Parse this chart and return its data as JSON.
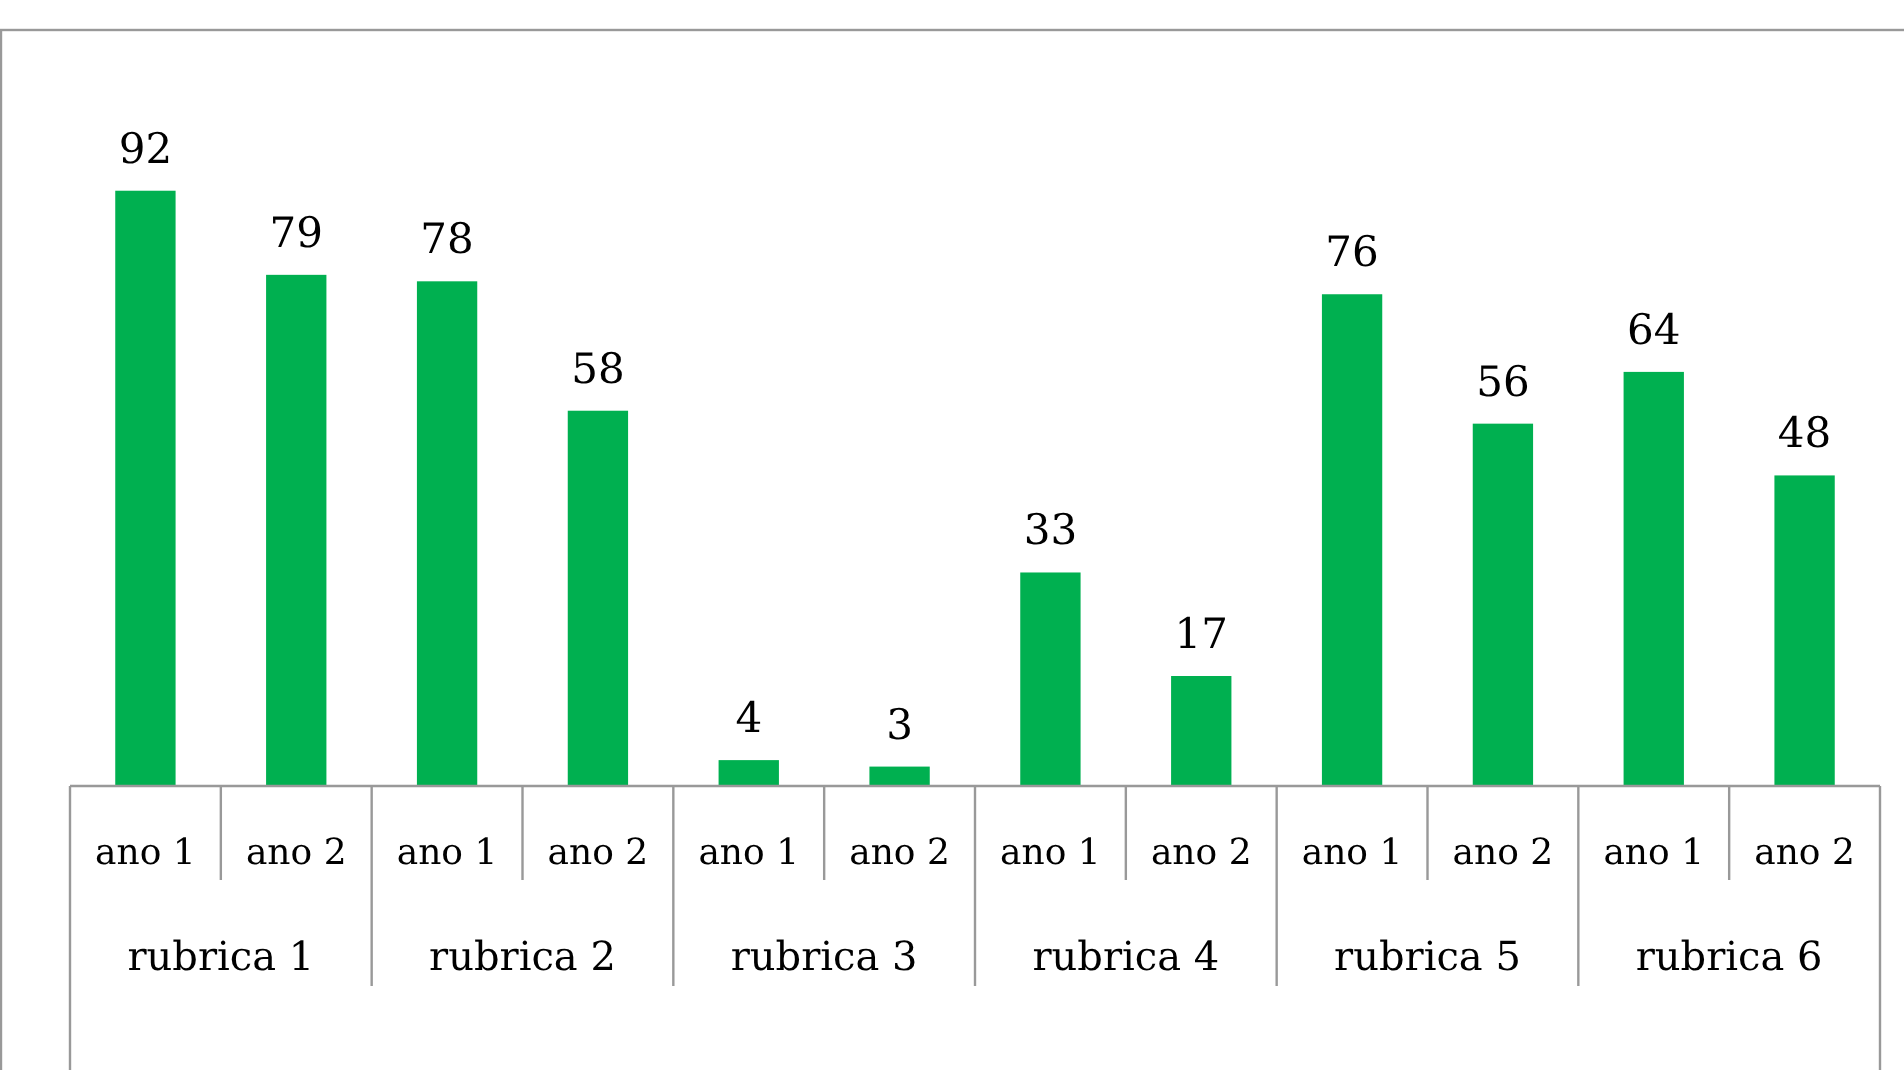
{
  "chart_data": {
    "type": "bar",
    "categories": [
      "ano 1",
      "ano 2",
      "ano 1",
      "ano 2",
      "ano 1",
      "ano 2",
      "ano 1",
      "ano 2",
      "ano 1",
      "ano 2",
      "ano 1",
      "ano 2"
    ],
    "values": [
      92,
      79,
      78,
      58,
      4,
      3,
      33,
      17,
      76,
      56,
      64,
      48
    ],
    "color": "#00b050",
    "data_labels": true,
    "annotations": [
      "rubrica 1",
      "rubrica 2",
      "rubrica 3",
      "rubrica 4",
      "rubrica 5",
      "rubrica 6"
    ]
  }
}
